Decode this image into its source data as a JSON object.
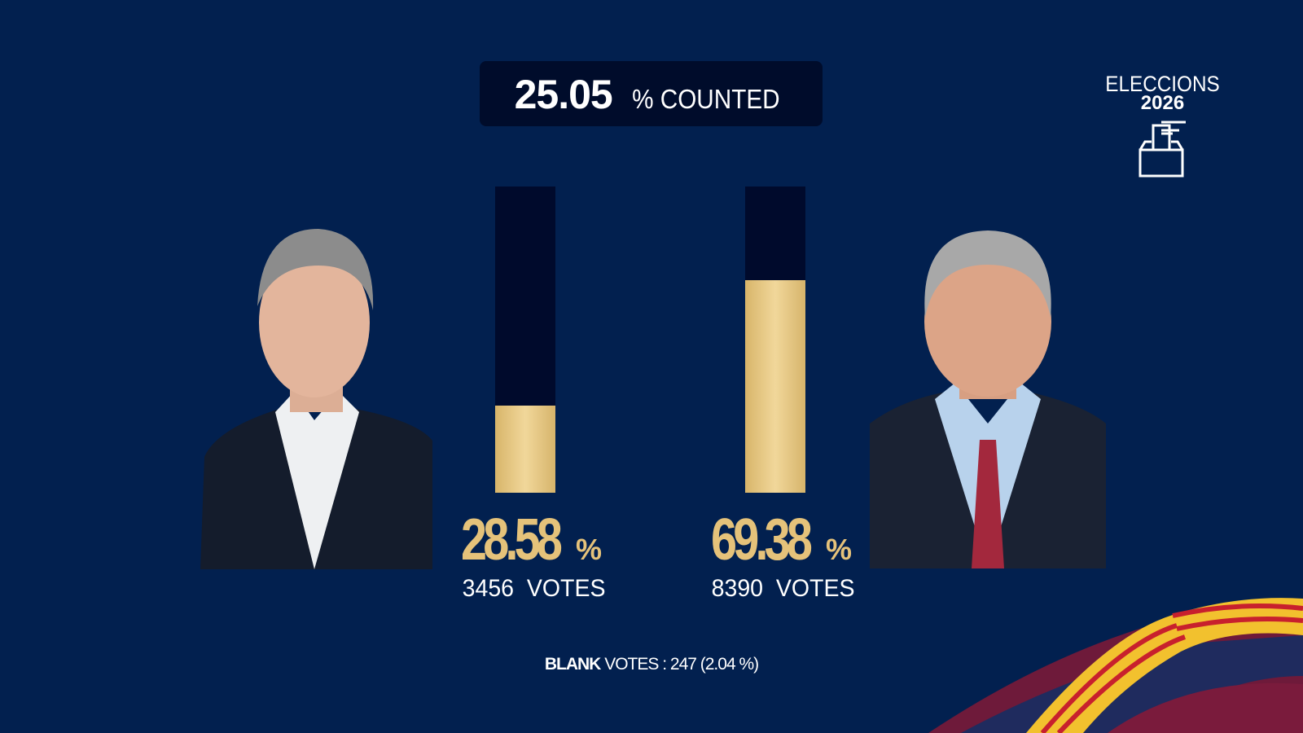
{
  "counted": {
    "value": "25.05",
    "label": "% COUNTED"
  },
  "logo": {
    "line1": "ELECCIONS",
    "line2": "2026",
    "icon": "ballot-box-icon"
  },
  "candidates": [
    {
      "percent_label": "28.58",
      "percent_sign": "%",
      "percent": 28.58,
      "votes_label": "3456  VOTES",
      "votes": 3456
    },
    {
      "percent_label": "69.38",
      "percent_sign": "%",
      "percent": 69.38,
      "votes_label": "8390  VOTES",
      "votes": 8390
    }
  ],
  "blank": {
    "bold": "BLANK",
    "rest": "VOTES :  247 (2.04 %)"
  },
  "colors": {
    "background": "#02204f",
    "bar_bg": "#000a2c",
    "gold": "#e5c27a",
    "panel": "#000c2b"
  }
}
